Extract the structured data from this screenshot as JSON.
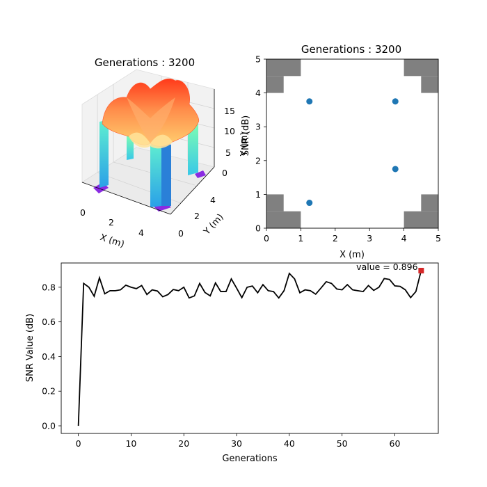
{
  "chart_data": [
    {
      "type": "surface3d",
      "title": "Generations : 3200",
      "xlabel": "X (m)",
      "ylabel": "Y (m)",
      "zlabel": "SNR (dB)",
      "xticks": [
        "0",
        "2",
        "4"
      ],
      "yticks": [
        "0",
        "2",
        "4"
      ],
      "zticks": [
        "0",
        "5",
        "10",
        "15"
      ],
      "colormap": "rainbow"
    },
    {
      "type": "scatter",
      "title": "Generations : 3200",
      "xlabel": "X (m)",
      "ylabel": "Y (m)",
      "xlim": [
        0,
        5
      ],
      "ylim": [
        0,
        5
      ],
      "xticks": [
        "0",
        "1",
        "2",
        "3",
        "4",
        "5"
      ],
      "yticks": [
        "0",
        "1",
        "2",
        "3",
        "4",
        "5"
      ],
      "points": [
        {
          "x": 1.25,
          "y": 3.75
        },
        {
          "x": 3.75,
          "y": 3.75
        },
        {
          "x": 3.75,
          "y": 1.75
        },
        {
          "x": 1.25,
          "y": 0.75
        }
      ],
      "point_color": "#1f77b4",
      "obstacle_color": "#808080",
      "obstacles": [
        {
          "x0": 0,
          "x1": 1,
          "y0": 4.5,
          "y1": 5
        },
        {
          "x0": 0,
          "x1": 0.5,
          "y0": 4,
          "y1": 4.5
        },
        {
          "x0": 4,
          "x1": 5,
          "y0": 4.5,
          "y1": 5
        },
        {
          "x0": 4.5,
          "x1": 5,
          "y0": 4,
          "y1": 4.5
        },
        {
          "x0": 0,
          "x1": 0.5,
          "y0": 0.5,
          "y1": 1
        },
        {
          "x0": 0,
          "x1": 1,
          "y0": 0,
          "y1": 0.5
        },
        {
          "x0": 4.5,
          "x1": 5,
          "y0": 0.5,
          "y1": 1
        },
        {
          "x0": 4,
          "x1": 5,
          "y0": 0,
          "y1": 0.5
        }
      ]
    },
    {
      "type": "line",
      "xlabel": "Generations",
      "ylabel": "SNR Value (dB)",
      "xlim": [
        -3.25,
        68.25
      ],
      "ylim": [
        -0.044,
        0.94
      ],
      "xticks": [
        0,
        10,
        20,
        30,
        40,
        50,
        60
      ],
      "yticks": [
        0.0,
        0.2,
        0.4,
        0.6,
        0.8
      ],
      "ytick_labels": [
        "0.0",
        "0.2",
        "0.4",
        "0.6",
        "0.8"
      ],
      "line_color": "#000000",
      "marker_color": "#d62728",
      "annotation": "value = 0.896",
      "last_point": {
        "x": 65,
        "y": 0.896
      },
      "x": [
        0,
        1,
        2,
        3,
        4,
        5,
        6,
        7,
        8,
        9,
        10,
        11,
        12,
        13,
        14,
        15,
        16,
        17,
        18,
        19,
        20,
        21,
        22,
        23,
        24,
        25,
        26,
        27,
        28,
        29,
        30,
        31,
        32,
        33,
        34,
        35,
        36,
        37,
        38,
        39,
        40,
        41,
        42,
        43,
        44,
        45,
        46,
        47,
        48,
        49,
        50,
        51,
        52,
        53,
        54,
        55,
        56,
        57,
        58,
        59,
        60,
        61,
        62,
        63,
        64,
        65
      ],
      "y": [
        0.0,
        0.822,
        0.8,
        0.748,
        0.855,
        0.762,
        0.78,
        0.78,
        0.785,
        0.812,
        0.8,
        0.792,
        0.81,
        0.758,
        0.785,
        0.778,
        0.745,
        0.758,
        0.787,
        0.78,
        0.8,
        0.738,
        0.75,
        0.822,
        0.77,
        0.75,
        0.825,
        0.775,
        0.775,
        0.848,
        0.795,
        0.74,
        0.8,
        0.807,
        0.768,
        0.815,
        0.78,
        0.775,
        0.738,
        0.78,
        0.88,
        0.848,
        0.768,
        0.785,
        0.78,
        0.76,
        0.795,
        0.832,
        0.822,
        0.79,
        0.785,
        0.815,
        0.785,
        0.78,
        0.775,
        0.81,
        0.782,
        0.8,
        0.85,
        0.845,
        0.808,
        0.805,
        0.785,
        0.74,
        0.775,
        0.896
      ]
    }
  ]
}
